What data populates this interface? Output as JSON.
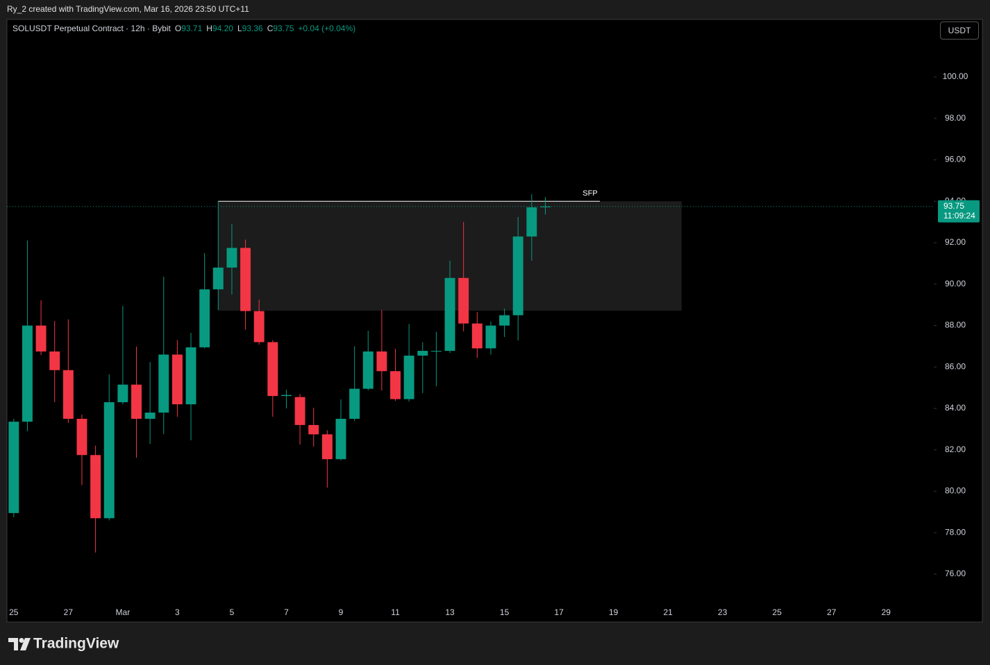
{
  "header": {
    "attribution": "Ry_2 created with TradingView.com, Mar 16, 2026 23:50 UTC+11"
  },
  "legend": {
    "symbol": "SOLUSDT Perpetual Contract · 12h · Bybit",
    "fields": [
      {
        "key": "O",
        "value": "93.71"
      },
      {
        "key": "H",
        "value": "94.20"
      },
      {
        "key": "L",
        "value": "93.36"
      },
      {
        "key": "C",
        "value": "93.75"
      }
    ],
    "change": "+0.04 (+0.04%)"
  },
  "currency": "USDT",
  "footer": {
    "brand": "TradingView"
  },
  "chart_data": {
    "type": "candlestick",
    "categories": [
      "25",
      null,
      null,
      null,
      "27",
      null,
      null,
      null,
      "Mar",
      null,
      null,
      null,
      "3",
      null,
      null,
      null,
      "5",
      null,
      null,
      null,
      "7",
      null,
      null,
      null,
      "9",
      null,
      null,
      null,
      "11",
      null,
      null,
      null,
      "13",
      null,
      null,
      null,
      "15",
      null,
      null,
      null,
      "17",
      null,
      null,
      null,
      "19",
      null,
      null,
      null,
      "21",
      null,
      null,
      null,
      "23",
      null,
      null,
      null,
      "25",
      null,
      null,
      null,
      "27",
      null,
      null,
      null,
      "29",
      null,
      null,
      null
    ],
    "open": [
      78.95,
      83.36,
      88.0,
      86.75,
      85.85,
      83.5,
      81.75,
      78.7,
      84.3,
      85.15,
      83.5,
      83.8,
      86.6,
      84.2,
      86.95,
      89.75,
      90.8,
      91.75,
      88.7,
      87.2,
      84.6,
      84.55,
      83.2,
      82.75,
      81.55,
      83.5,
      84.95,
      86.75,
      85.8,
      84.45,
      86.55,
      86.75,
      86.78,
      90.3,
      88.1,
      86.9,
      88.0,
      88.5,
      92.3,
      93.71,
      null,
      null,
      null,
      null,
      null,
      null,
      null,
      null,
      null,
      null,
      null,
      null,
      null,
      null,
      null,
      null,
      null,
      null,
      null,
      null,
      null,
      null,
      null,
      null,
      null,
      null,
      null,
      null
    ],
    "high": [
      83.5,
      92.1,
      89.22,
      88.22,
      88.3,
      83.7,
      82.2,
      85.64,
      88.95,
      86.98,
      86.24,
      90.36,
      87.3,
      87.65,
      91.5,
      94.0,
      92.9,
      92.15,
      89.25,
      87.3,
      84.9,
      84.7,
      84.03,
      82.95,
      84.44,
      87.0,
      87.75,
      88.75,
      86.88,
      88.08,
      87.2,
      87.7,
      91.13,
      93.0,
      88.65,
      88.2,
      88.82,
      93.24,
      94.35,
      94.2,
      null,
      null,
      null,
      null,
      null,
      null,
      null,
      null,
      null,
      null,
      null,
      null,
      null,
      null,
      null,
      null,
      null,
      null,
      null,
      null,
      null,
      null,
      null,
      null,
      null,
      null,
      null,
      null
    ],
    "low": [
      78.75,
      82.9,
      86.58,
      84.3,
      83.3,
      80.3,
      77.04,
      78.6,
      84.2,
      81.62,
      82.29,
      82.76,
      83.6,
      82.46,
      86.9,
      88.75,
      89.5,
      87.8,
      87.08,
      83.6,
      84.0,
      82.26,
      82.16,
      80.18,
      81.5,
      83.4,
      84.87,
      84.87,
      84.37,
      84.33,
      84.74,
      85.07,
      86.68,
      87.72,
      86.44,
      86.6,
      87.45,
      87.28,
      91.13,
      93.36,
      null,
      null,
      null,
      null,
      null,
      null,
      null,
      null,
      null,
      null,
      null,
      null,
      null,
      null,
      null,
      null,
      null,
      null,
      null,
      null,
      null,
      null,
      null,
      null,
      null,
      null,
      null,
      null
    ],
    "close": [
      83.36,
      88.0,
      86.75,
      85.85,
      83.5,
      81.75,
      78.7,
      84.3,
      85.15,
      83.5,
      83.8,
      86.6,
      84.2,
      86.95,
      89.75,
      90.8,
      91.75,
      88.7,
      87.2,
      84.6,
      84.65,
      83.2,
      82.75,
      81.55,
      83.5,
      84.95,
      86.75,
      85.8,
      84.45,
      86.55,
      86.78,
      86.78,
      90.3,
      88.1,
      86.9,
      88.0,
      88.5,
      92.3,
      93.71,
      93.75,
      null,
      null,
      null,
      null,
      null,
      null,
      null,
      null,
      null,
      null,
      null,
      null,
      null,
      null,
      null,
      null,
      null,
      null,
      null,
      null,
      null,
      null,
      null,
      null,
      null,
      null,
      null,
      null
    ],
    "up_color": "#089981",
    "down_color": "#f23645",
    "ylim": [
      73.69,
      102.78
    ],
    "yticks": [
      {
        "value": 76,
        "label": "76.00"
      },
      {
        "value": 78,
        "label": "78.00"
      },
      {
        "value": 80,
        "label": "80.00"
      },
      {
        "value": 82,
        "label": "82.00"
      },
      {
        "value": 84,
        "label": "84.00"
      },
      {
        "value": 86,
        "label": "86.00"
      },
      {
        "value": 88,
        "label": "88.00"
      },
      {
        "value": 90,
        "label": "90.00"
      },
      {
        "value": 92,
        "label": "92.00"
      },
      {
        "value": 94,
        "label": "94.00"
      },
      {
        "value": 96,
        "label": "96.00"
      },
      {
        "value": 98,
        "label": "98.00"
      },
      {
        "value": 100,
        "label": "100.00"
      }
    ],
    "last_price": 93.75,
    "countdown": "11:09:24",
    "zone": {
      "x0": 15,
      "x1": 49,
      "top": 94.0,
      "bottom": 88.72
    },
    "sfp": {
      "label": "SFP",
      "level": 94.0,
      "x0": 15,
      "x1": 43
    }
  }
}
